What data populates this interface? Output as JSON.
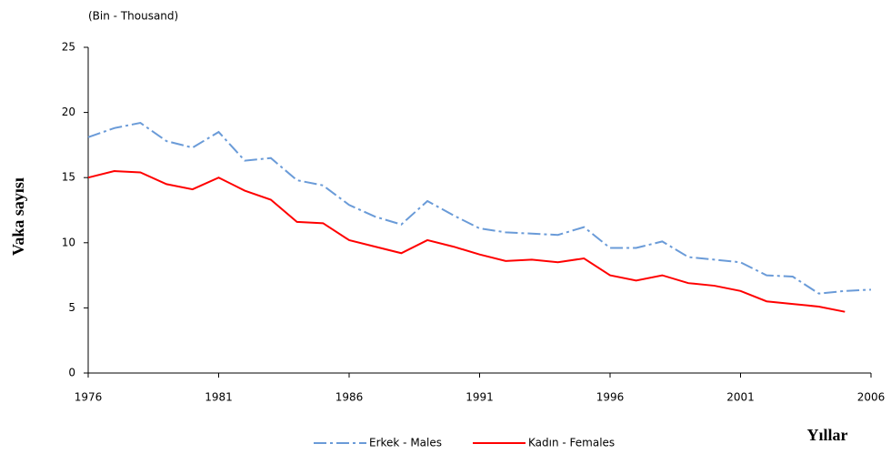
{
  "chart_data": {
    "type": "line",
    "unit_label": "(Bin - Thousand)",
    "y_label": "Vaka sayısı",
    "x_label": "Yıllar",
    "x": [
      1976,
      1977,
      1978,
      1979,
      1980,
      1981,
      1982,
      1983,
      1984,
      1985,
      1986,
      1987,
      1988,
      1989,
      1990,
      1991,
      1992,
      1993,
      1994,
      1995,
      1996,
      1997,
      1998,
      1999,
      2000,
      2001,
      2002,
      2003,
      2004,
      2005,
      2006
    ],
    "series": [
      {
        "name": "Erkek - Males",
        "color": "#6a9bd8",
        "dash": "dash-dot",
        "values": [
          18.1,
          18.8,
          19.2,
          17.8,
          17.3,
          18.5,
          16.3,
          16.5,
          14.8,
          14.4,
          12.9,
          12.0,
          11.4,
          13.2,
          12.1,
          11.1,
          10.8,
          10.7,
          10.6,
          11.2,
          9.6,
          9.6,
          10.1,
          8.9,
          8.7,
          8.5,
          7.5,
          7.4,
          6.1,
          6.3,
          6.4
        ]
      },
      {
        "name": "Kadın - Females",
        "color": "#ff0000",
        "dash": "solid",
        "values": [
          15.0,
          15.5,
          15.4,
          14.5,
          14.1,
          15.0,
          14.0,
          13.3,
          11.6,
          11.5,
          10.2,
          9.7,
          9.2,
          10.2,
          9.7,
          9.1,
          8.6,
          8.7,
          8.5,
          8.8,
          7.5,
          7.1,
          7.5,
          6.9,
          6.7,
          6.3,
          5.5,
          5.3,
          5.1,
          4.7,
          null
        ]
      }
    ],
    "xlim": [
      1976,
      2006
    ],
    "xticks": [
      1976,
      1981,
      1986,
      1991,
      1996,
      2001,
      2006
    ],
    "ylim": [
      0,
      25
    ],
    "yticks": [
      0,
      5,
      10,
      15,
      20,
      25
    ],
    "grid": false,
    "legend": "bottom"
  }
}
